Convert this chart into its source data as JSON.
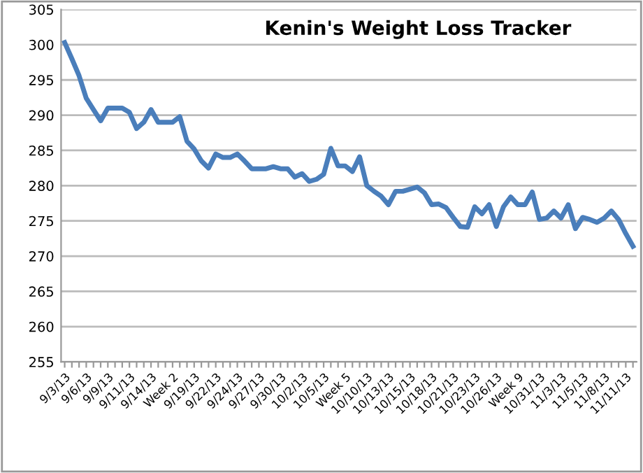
{
  "chart_data": {
    "type": "line",
    "title": "Kenin's Weight Loss Tracker",
    "categories": [
      "9/3/13",
      null,
      null,
      "9/6/13",
      null,
      null,
      "9/9/13",
      null,
      null,
      "9/11/13",
      null,
      null,
      "9/14/13",
      null,
      null,
      "Week 2",
      null,
      null,
      "9/19/13",
      null,
      null,
      "9/22/13",
      null,
      null,
      "9/24/13",
      null,
      null,
      "9/27/13",
      null,
      null,
      "9/30/13",
      null,
      null,
      "10/2/13",
      null,
      null,
      "10/5/13",
      null,
      null,
      "Week 5",
      null,
      null,
      "10/10/13",
      null,
      null,
      "10/13/13",
      null,
      null,
      "10/15/13",
      null,
      null,
      "10/18/13",
      null,
      null,
      "10/21/13",
      null,
      null,
      "10/23/13",
      null,
      null,
      "10/26/13",
      null,
      null,
      "Week 9",
      null,
      null,
      "10/31/13",
      null,
      null,
      "11/3/13",
      null,
      null,
      "11/5/13",
      null,
      null,
      "11/8/13",
      null,
      null,
      "11/11/13",
      null
    ],
    "series": [
      {
        "color": "#4a7ebb",
        "values": [
          300.3,
          298,
          295.6,
          292.4,
          290.8,
          289.2,
          291,
          291,
          291,
          290.4,
          288.1,
          289,
          290.8,
          289,
          289,
          289,
          289.8,
          286.3,
          285.2,
          283.5,
          282.5,
          284.5,
          284,
          284,
          284.5,
          283.5,
          282.4,
          282.4,
          282.4,
          282.7,
          282.4,
          282.4,
          281.2,
          281.7,
          280.6,
          280.9,
          281.6,
          285.3,
          282.8,
          282.8,
          282,
          284.1,
          280,
          279.2,
          278.5,
          277.3,
          279.2,
          279.2,
          279.5,
          279.8,
          279,
          277.3,
          277.4,
          276.9,
          275.5,
          274.2,
          274.1,
          277,
          276,
          277.3,
          274.2,
          277,
          278.4,
          277.3,
          277.3,
          279.1,
          275.2,
          275.4,
          276.4,
          275.4,
          277.3,
          273.9,
          275.5,
          275.2,
          274.8,
          275.4,
          276.4,
          275.2,
          273.2,
          271.4
        ]
      }
    ],
    "ylim": [
      255,
      305
    ],
    "yticks": [
      255,
      260,
      265,
      270,
      275,
      280,
      285,
      290,
      295,
      300,
      305
    ],
    "grid": "y",
    "marker": "none",
    "line_style": "solid",
    "legend": false
  }
}
